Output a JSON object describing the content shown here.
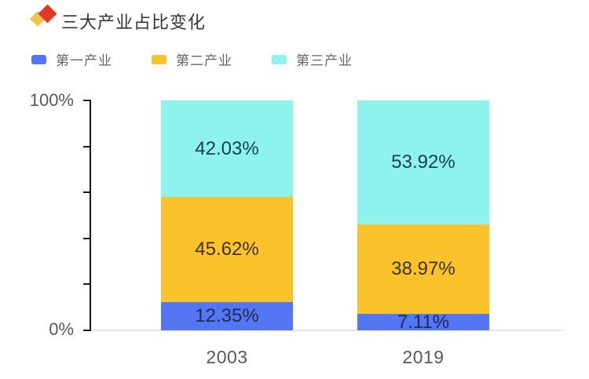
{
  "header": {
    "icon": "overlapping-diamonds-icon",
    "icon_colors": {
      "back": "#F2C14B",
      "front": "#E0392B"
    }
  },
  "chart_data": {
    "type": "bar",
    "stacked": true,
    "title": "三大产业占比变化",
    "categories": [
      "2003",
      "2019"
    ],
    "series": [
      {
        "name": "第一产业",
        "color": "#5476F2",
        "label_color": "#1C2B55",
        "values": [
          12.35,
          7.11
        ]
      },
      {
        "name": "第二产业",
        "color": "#FAC22B",
        "label_color": "#3F2F0A",
        "values": [
          45.62,
          38.97
        ]
      },
      {
        "name": "第三产业",
        "color": "#8DF3EC",
        "label_color": "#123F49",
        "values": [
          42.03,
          53.92
        ]
      }
    ],
    "value_suffix": "%",
    "ylim": [
      0,
      100
    ],
    "y_axis": {
      "top_label": "100%",
      "bottom_label": "0%",
      "ticks_pct": [
        0,
        20,
        40,
        60,
        80,
        100
      ]
    },
    "legend_position": "top-left",
    "grid": false
  }
}
